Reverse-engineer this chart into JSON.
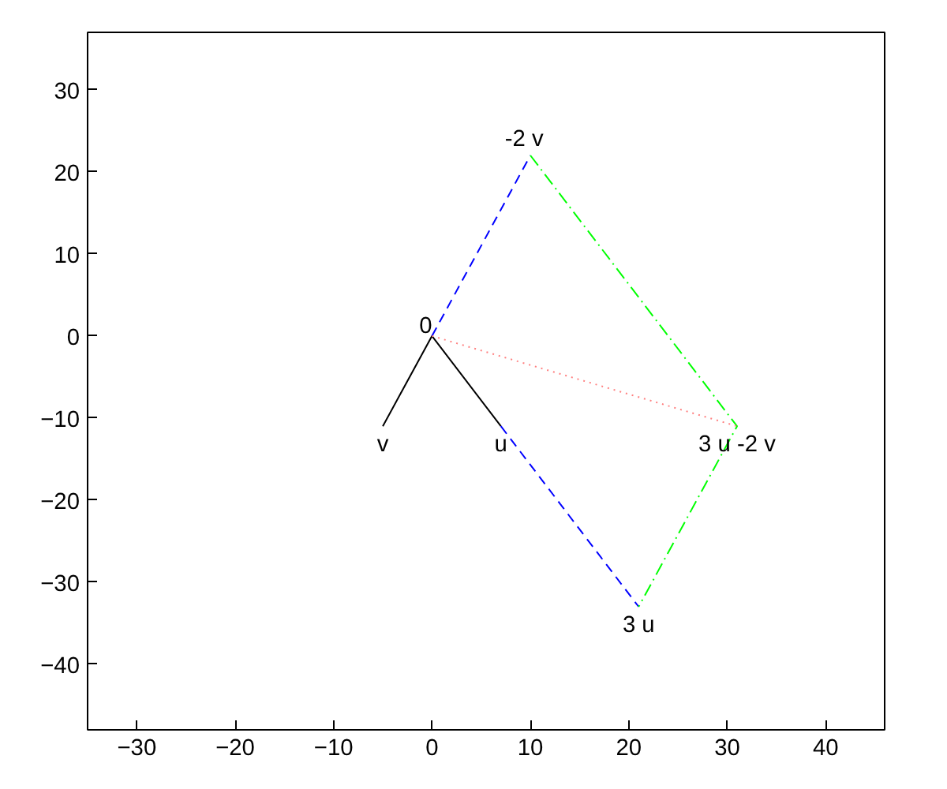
{
  "chart_data": {
    "type": "line",
    "xlim": [
      -35,
      46
    ],
    "ylim": [
      -48,
      37
    ],
    "xticks": [
      -30,
      -20,
      -10,
      0,
      10,
      20,
      30,
      40
    ],
    "yticks": [
      -40,
      -30,
      -20,
      -10,
      0,
      10,
      20,
      30
    ],
    "grid": false,
    "marker": "none",
    "series": [
      {
        "color": "#000000",
        "line_style": "solid",
        "x": [
          -5,
          0,
          7
        ],
        "values": [
          -11,
          0,
          -11
        ]
      },
      {
        "color": "#0000ff",
        "line_style": "dashed",
        "x": [
          0,
          10,
          null,
          7,
          21
        ],
        "values": [
          0,
          22,
          null,
          -11,
          -33
        ]
      },
      {
        "color": "#00ff00",
        "line_style": "dashdot",
        "x": [
          10,
          31,
          21
        ],
        "values": [
          22,
          -11,
          -33
        ]
      },
      {
        "color": "#ff8080",
        "line_style": "dotted",
        "x": [
          0,
          31
        ],
        "values": [
          0,
          -11
        ]
      }
    ],
    "annotations": [
      {
        "text": "0",
        "x": 0,
        "y": 0
      },
      {
        "text": "-2 v",
        "x": 10,
        "y": 22
      },
      {
        "text": "u",
        "x": 7,
        "y": -11
      },
      {
        "text": "v",
        "x": -5,
        "y": -11
      },
      {
        "text": "3 u",
        "x": 21,
        "y": -33
      },
      {
        "text": "3 u -2 v",
        "x": 31,
        "y": -11
      }
    ]
  }
}
